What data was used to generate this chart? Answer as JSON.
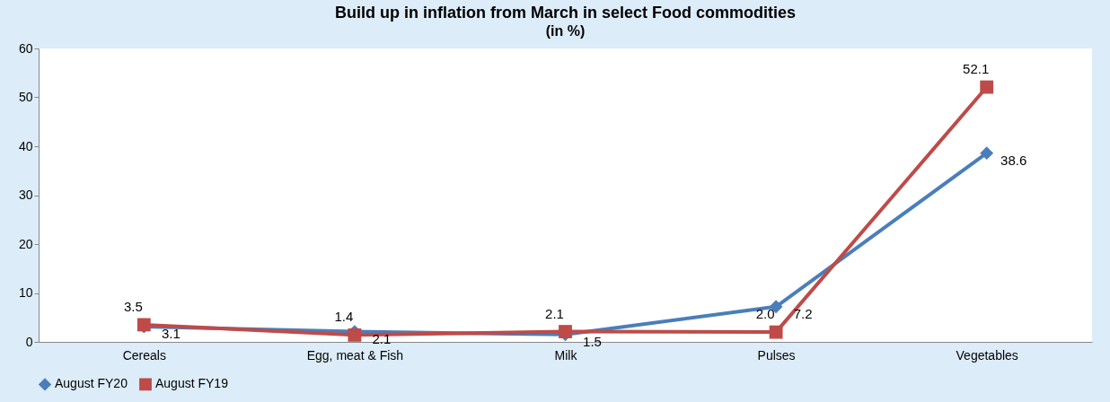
{
  "chart_data": {
    "type": "line",
    "title": "Build up in inflation from March in select Food commodities",
    "subtitle": "(in %)",
    "categories": [
      "Cereals",
      "Egg, meat & Fish",
      "Milk",
      "Pulses",
      "Vegetables"
    ],
    "series": [
      {
        "name": "August FY20",
        "color": "#4a7ebb",
        "marker": "diamond",
        "values": [
          3.1,
          2.1,
          1.5,
          7.2,
          38.6
        ],
        "value_labels": [
          "3.1",
          "2.1",
          "1.5",
          "7.2",
          "38.6"
        ]
      },
      {
        "name": "August FY19",
        "color": "#be4b48",
        "marker": "square",
        "values": [
          3.5,
          1.4,
          2.1,
          2.0,
          52.1
        ],
        "value_labels": [
          "3.5",
          "1.4",
          "2.1",
          "2.0",
          "52.1"
        ]
      }
    ],
    "ylim": [
      0,
      60
    ],
    "yticks": [
      0,
      10,
      20,
      30,
      40,
      50,
      60
    ],
    "grid": false,
    "legend": "bottom",
    "line_style": "solid"
  }
}
